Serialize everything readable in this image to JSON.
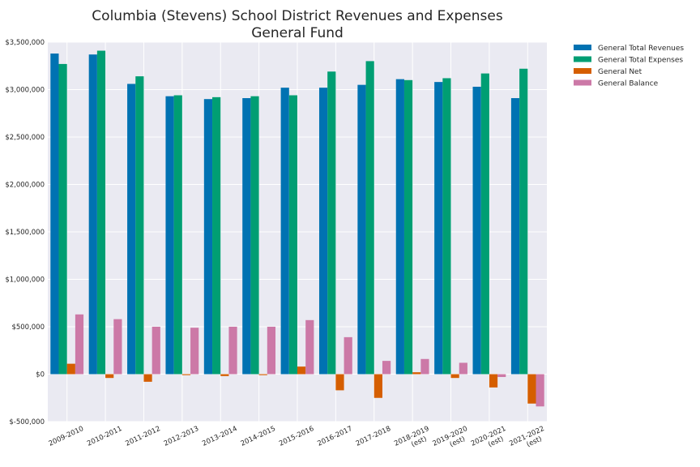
{
  "chart_data": {
    "type": "bar",
    "title": [
      "Columbia (Stevens) School District Revenues and Expenses",
      "General Fund"
    ],
    "xlabel": "",
    "ylabel": "",
    "categories": [
      [
        "2009-2010"
      ],
      [
        "2010-2011"
      ],
      [
        "2011-2012"
      ],
      [
        "2012-2013"
      ],
      [
        "2013-2014"
      ],
      [
        "2014-2015"
      ],
      [
        "2015-2016"
      ],
      [
        "2016-2017"
      ],
      [
        "2017-2018"
      ],
      [
        "2018-2019",
        "(est)"
      ],
      [
        "2019-2020",
        "(est)"
      ],
      [
        "2020-2021",
        "(est)"
      ],
      [
        "2021-2022",
        "(est)"
      ]
    ],
    "ylim": [
      -500000,
      3500000
    ],
    "yticks": [
      -500000,
      0,
      500000,
      1000000,
      1500000,
      2000000,
      2500000,
      3000000,
      3500000
    ],
    "ytick_labels": [
      "$-500,000",
      "$0",
      "$500,000",
      "$1,000,000",
      "$1,500,000",
      "$2,000,000",
      "$2,500,000",
      "$3,000,000",
      "$3,500,000"
    ],
    "grid": true,
    "legend_position": "outside-top-right",
    "series": [
      {
        "name": "General Total Revenues",
        "color": "#0072b2",
        "values": [
          3380000,
          3370000,
          3060000,
          2930000,
          2900000,
          2910000,
          3020000,
          3020000,
          3050000,
          3110000,
          3080000,
          3030000,
          2910000
        ]
      },
      {
        "name": "General Total Expenses",
        "color": "#009e73",
        "values": [
          3270000,
          3410000,
          3140000,
          2940000,
          2920000,
          2930000,
          2940000,
          3190000,
          3300000,
          3100000,
          3120000,
          3170000,
          3220000
        ]
      },
      {
        "name": "General Net",
        "color": "#d55e00",
        "values": [
          110000,
          -40000,
          -80000,
          -10000,
          -20000,
          -10000,
          80000,
          -170000,
          -250000,
          20000,
          -40000,
          -140000,
          -310000
        ]
      },
      {
        "name": "General Balance",
        "color": "#cc79a7",
        "values": [
          630000,
          580000,
          500000,
          490000,
          500000,
          500000,
          570000,
          390000,
          140000,
          160000,
          120000,
          -30000,
          -340000
        ]
      }
    ]
  }
}
